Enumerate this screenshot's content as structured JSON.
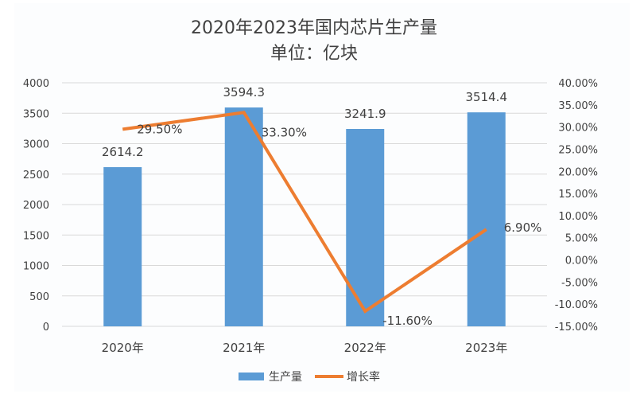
{
  "chart_data": {
    "type": "bar",
    "title": "2020年2023年国内芯片生产量",
    "subtitle": "单位：亿块",
    "categories": [
      "2020年",
      "2021年",
      "2022年",
      "2023年"
    ],
    "series": [
      {
        "name": "生产量",
        "type": "bar",
        "axis": "left",
        "color": "#5b9bd5",
        "values": [
          2614.2,
          3594.3,
          3241.9,
          3514.4
        ],
        "labels": [
          "2614.2",
          "3594.3",
          "3241.9",
          "3514.4"
        ]
      },
      {
        "name": "增长率",
        "type": "line",
        "axis": "right",
        "color": "#ed7d31",
        "values": [
          29.5,
          33.3,
          -11.6,
          6.9
        ],
        "labels": [
          "29.50%",
          "33.30%",
          "-11.60%",
          "6.90%"
        ]
      }
    ],
    "y_left": {
      "range": [
        0,
        4000
      ],
      "ticks": [
        "0",
        "500",
        "1000",
        "1500",
        "2000",
        "2500",
        "3000",
        "3500",
        "4000"
      ]
    },
    "y_right": {
      "range": [
        -15,
        40
      ],
      "unit": "%",
      "ticks": [
        "-15.00%",
        "-10.00%",
        "-5.00%",
        "0.00%",
        "5.00%",
        "10.00%",
        "15.00%",
        "20.00%",
        "25.00%",
        "30.00%",
        "35.00%",
        "40.00%"
      ]
    },
    "grid": true,
    "legend": "bottom"
  }
}
